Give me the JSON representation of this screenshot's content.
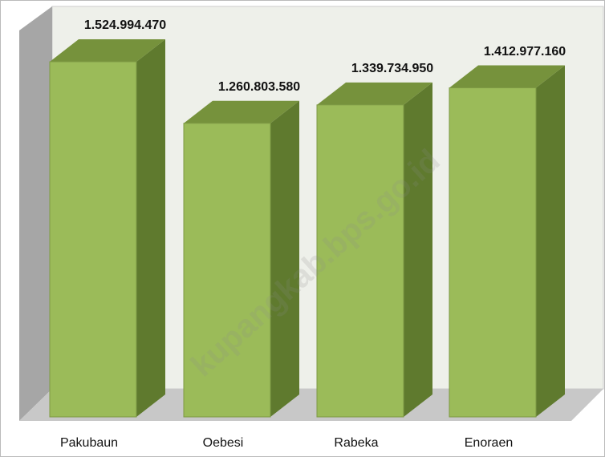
{
  "chart_data": {
    "type": "bar3d",
    "categories": [
      "Pakubaun",
      "Oebesi",
      "Rabeka",
      "Enoraen"
    ],
    "values": [
      1524994470,
      1260803580,
      1339734950,
      1412977160
    ],
    "value_labels": [
      "1.524.994.470",
      "1.260.803.580",
      "1.339.734.950",
      "1.412.977.160"
    ],
    "color": "#9bbb59",
    "watermark": "kupangkab.bps.go.id"
  }
}
